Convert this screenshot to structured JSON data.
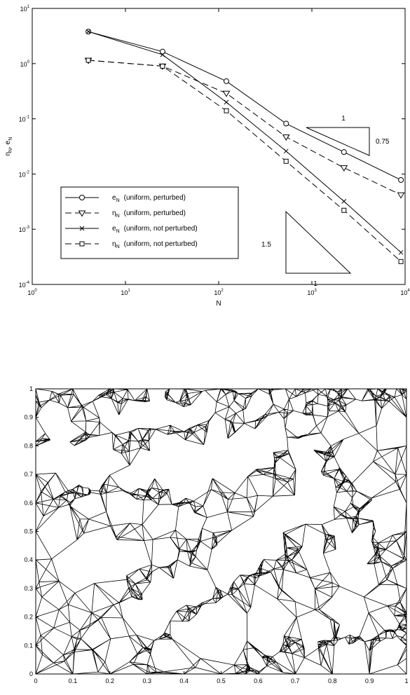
{
  "chart_data": [
    {
      "type": "line",
      "xscale": "log",
      "yscale": "log",
      "xlim": [
        1,
        10000
      ],
      "ylim": [
        0.0001,
        10
      ],
      "xlabel": "N",
      "ylabel": "η_N, e_N",
      "x_ticks": [
        {
          "value": 1,
          "base": "10",
          "exp": "0"
        },
        {
          "value": 10,
          "base": "10",
          "exp": "1"
        },
        {
          "value": 100,
          "base": "10",
          "exp": "2"
        },
        {
          "value": 1000,
          "base": "10",
          "exp": "3"
        },
        {
          "value": 10000,
          "base": "10",
          "exp": "4"
        }
      ],
      "y_ticks": [
        {
          "value": 10,
          "base": "10",
          "exp": "1"
        },
        {
          "value": 1,
          "base": "10",
          "exp": "0"
        },
        {
          "value": 0.1,
          "base": "10",
          "exp": "-1"
        },
        {
          "value": 0.01,
          "base": "10",
          "exp": "-2"
        },
        {
          "value": 0.001,
          "base": "10",
          "exp": "-3"
        },
        {
          "value": 0.0001,
          "base": "10",
          "exp": "-4"
        }
      ],
      "series": [
        {
          "name": "e_N (uniform, perturbed)",
          "sym": "e",
          "sub": "N",
          "desc": "(uniform, perturbed)",
          "marker": "circle",
          "dash": "solid",
          "x": [
            4,
            25,
            121,
            529,
            2209,
            9025
          ],
          "values": [
            3.8,
            1.65,
            0.48,
            0.082,
            0.025,
            0.0078
          ]
        },
        {
          "name": "η_N (uniform, perturbed)",
          "sym": "η",
          "sub": "N",
          "desc": "(uniform, perturbed)",
          "marker": "triangle-down",
          "dash": "dashed",
          "x": [
            4,
            25,
            121,
            529,
            2209,
            9025
          ],
          "values": [
            1.15,
            0.9,
            0.29,
            0.047,
            0.013,
            0.0042
          ]
        },
        {
          "name": "e_N (uniform, not perturbed)",
          "sym": "e",
          "sub": "N",
          "desc": "(uniform, not perturbed)",
          "marker": "x",
          "dash": "solid",
          "x": [
            4,
            25,
            121,
            529,
            2209,
            9025
          ],
          "values": [
            3.8,
            1.45,
            0.2,
            0.026,
            0.0032,
            0.00038
          ]
        },
        {
          "name": "η_N (uniform, not perturbed)",
          "sym": "η",
          "sub": "N",
          "desc": "(uniform, not perturbed)",
          "marker": "square",
          "dash": "dashed",
          "x": [
            4,
            25,
            121,
            529,
            2209,
            9025
          ],
          "values": [
            1.15,
            0.9,
            0.14,
            0.017,
            0.0022,
            0.00026
          ]
        }
      ],
      "legend": "lower-left",
      "slope_triangles": [
        {
          "run_label": "1",
          "rise_label": "0.75"
        },
        {
          "rise_label": "1.5",
          "run_label": "1"
        }
      ],
      "grid": false
    },
    {
      "type": "mesh",
      "xlim": [
        0,
        1
      ],
      "ylim": [
        0,
        1
      ],
      "x_ticks": [
        "0",
        "0.1",
        "0.2",
        "0.3",
        "0.4",
        "0.5",
        "0.6",
        "0.7",
        "0.8",
        "0.9",
        "1"
      ],
      "y_ticks": [
        "0",
        "0.1",
        "0.2",
        "0.3",
        "0.4",
        "0.5",
        "0.6",
        "0.7",
        "0.8",
        "0.9",
        "1"
      ],
      "grid": false
    }
  ]
}
